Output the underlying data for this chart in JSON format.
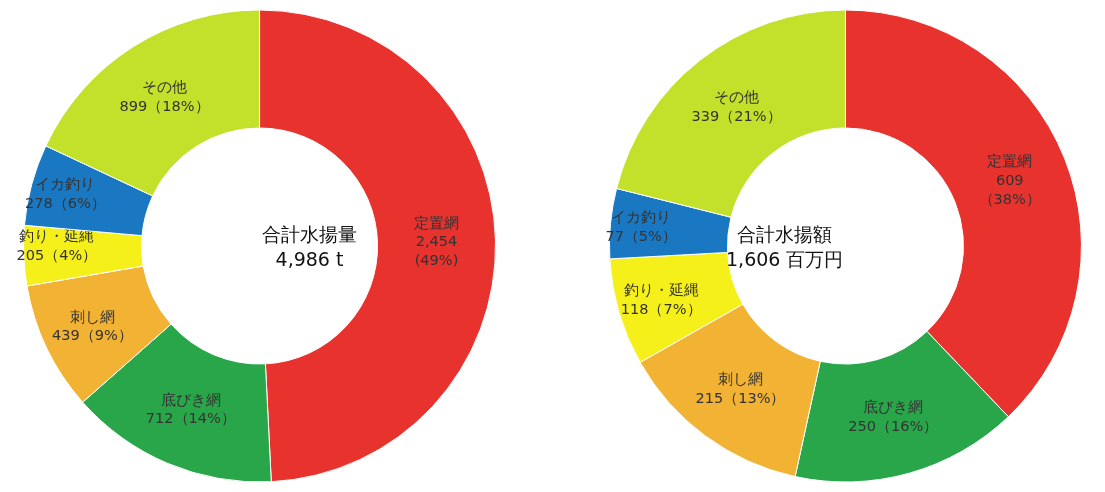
{
  "chart_data": [
    {
      "type": "donut",
      "categories": [
        "定置網",
        "底びき網",
        "刺し網",
        "釣り・延縄",
        "イカ釣り",
        "その他"
      ],
      "values": [
        2454,
        712,
        439,
        205,
        278,
        899
      ],
      "value_labels": [
        "2,454\n(49%)",
        "712（14%）",
        "439（9%）",
        "205（4%）",
        "278（6%）",
        "899（18%）"
      ],
      "colors": [
        "#e8322e",
        "#2aa64a",
        "#f2b234",
        "#f6f01a",
        "#1a78c2",
        "#c3e02a"
      ],
      "annotations": [
        "合計水揚量\n4,986 t"
      ]
    },
    {
      "type": "donut",
      "categories": [
        "定置網",
        "底びき網",
        "刺し網",
        "釣り・延縄",
        "イカ釣り",
        "その他"
      ],
      "values": [
        609,
        250,
        215,
        118,
        77,
        339
      ],
      "value_labels": [
        "609\n（38%）",
        "250（16%）",
        "215（13%）",
        "118（7%）",
        "77（5%）",
        "339（21%）"
      ],
      "colors": [
        "#e8322e",
        "#2aa64a",
        "#f2b234",
        "#f6f01a",
        "#1a78c2",
        "#c3e02a"
      ],
      "annotations": [
        "合計水揚額\n1,606 百万円"
      ]
    }
  ]
}
